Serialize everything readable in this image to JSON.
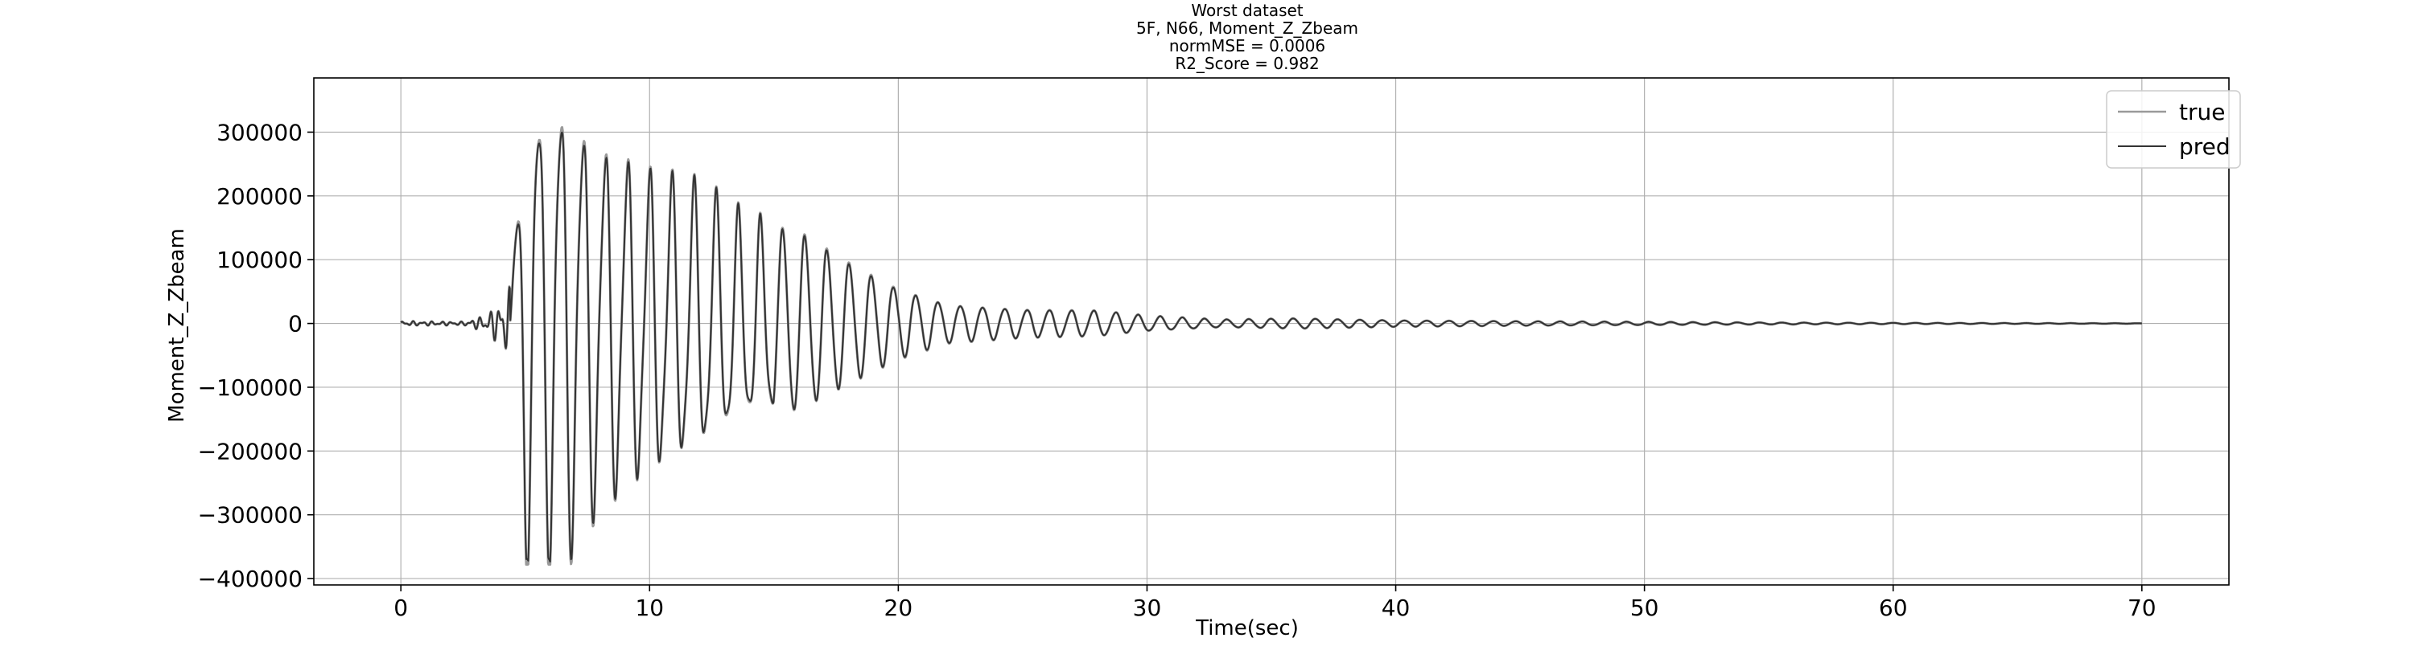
{
  "chart_data": {
    "type": "line",
    "title_lines": [
      "Worst dataset",
      "5F, N66, Moment_Z_Zbeam",
      "normMSE = 0.0006",
      "R2_Score = 0.982"
    ],
    "xlabel": "Time(sec)",
    "ylabel": "Moment_Z_Zbeam",
    "xlim": [
      -3.5,
      73.5
    ],
    "ylim": [
      -410000,
      385000
    ],
    "x_ticks": [
      0,
      10,
      20,
      30,
      40,
      50,
      60,
      70
    ],
    "x_tick_labels": [
      "0",
      "10",
      "20",
      "30",
      "40",
      "50",
      "60",
      "70"
    ],
    "y_ticks": [
      300000,
      200000,
      100000,
      0,
      -100000,
      -200000,
      -300000,
      -400000
    ],
    "y_tick_labels": [
      "300000",
      "200000",
      "100000",
      "0",
      "−100000",
      "−200000",
      "−300000",
      "−400000"
    ],
    "grid": true,
    "legend_position": "top-right",
    "signal": {
      "t_start": 0,
      "t_end": 70,
      "samples": 3500,
      "frequency_hz": 1.12,
      "peak_max": 345000,
      "peak_min": -378000,
      "envelope": [
        {
          "t": 0,
          "amp": 4000
        },
        {
          "t": 2.5,
          "amp": 3000
        },
        {
          "t": 3.5,
          "amp": 15000
        },
        {
          "t": 4.4,
          "amp": 60000
        },
        {
          "t": 5.0,
          "amp": 340000
        },
        {
          "t": 6.5,
          "amp": 345000
        },
        {
          "t": 8.0,
          "amp": 270000
        },
        {
          "t": 10.0,
          "amp": 225000
        },
        {
          "t": 12.0,
          "amp": 200000
        },
        {
          "t": 14.0,
          "amp": 150000
        },
        {
          "t": 16.0,
          "amp": 140000
        },
        {
          "t": 18.0,
          "amp": 95000
        },
        {
          "t": 20.0,
          "amp": 55000
        },
        {
          "t": 22.0,
          "amp": 30000
        },
        {
          "t": 25.0,
          "amp": 22000
        },
        {
          "t": 28.0,
          "amp": 20000
        },
        {
          "t": 30.0,
          "amp": 12000
        },
        {
          "t": 33.0,
          "amp": 6000
        },
        {
          "t": 36.0,
          "amp": 8000
        },
        {
          "t": 40.0,
          "amp": 5000
        },
        {
          "t": 45.0,
          "amp": 3500
        },
        {
          "t": 50.0,
          "amp": 2500
        },
        {
          "t": 55.0,
          "amp": 1500
        },
        {
          "t": 60.0,
          "amp": 1000
        },
        {
          "t": 70.0,
          "amp": 300
        }
      ]
    },
    "series": [
      {
        "name": "true",
        "color": "#9a9a9a"
      },
      {
        "name": "pred",
        "color": "#333333"
      }
    ]
  }
}
